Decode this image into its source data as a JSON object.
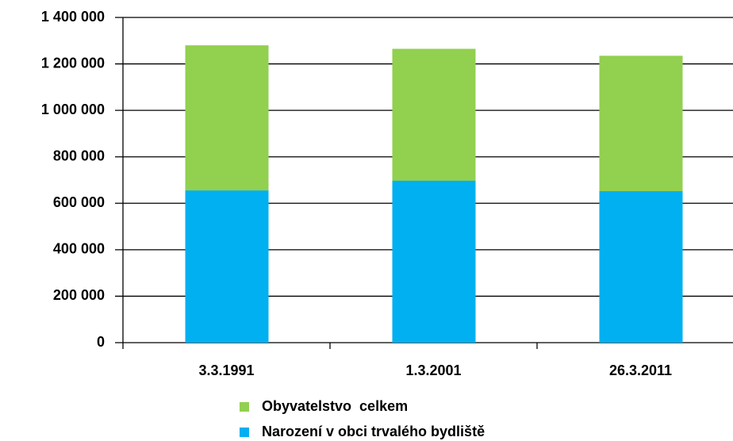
{
  "chart_data": {
    "type": "bar",
    "overlap": true,
    "categories": [
      "3.3.1991",
      "1.3.2001",
      "26.3.2011"
    ],
    "series": [
      {
        "name": "Obyvatelstvo  celkem",
        "color": "#92d050",
        "values": [
          1280000,
          1265000,
          1235000
        ]
      },
      {
        "name": "Narození v obci trvalého bydliště",
        "color": "#00b0f0",
        "values": [
          655000,
          697000,
          652000
        ]
      }
    ],
    "ylim": [
      0,
      1400000
    ],
    "yticks": [
      0,
      {
        "value": 200000,
        "label": "200 000"
      },
      {
        "value": 400000,
        "label": "400 000"
      },
      {
        "value": 600000,
        "label": "600 000"
      },
      {
        "value": 800000,
        "label": "800 000"
      },
      {
        "value": 1000000,
        "label": "1 000 000"
      },
      {
        "value": 1200000,
        "label": "1 200 000"
      },
      {
        "value": 1400000,
        "label": "1 400 000"
      }
    ],
    "grid": true,
    "legend": "bottom"
  }
}
